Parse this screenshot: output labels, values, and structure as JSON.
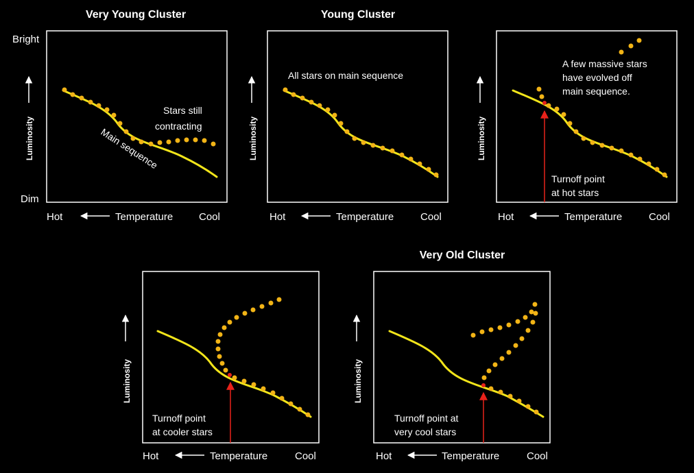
{
  "labels": {
    "bright": "Bright",
    "dim": "Dim",
    "luminosity": "Luminosity",
    "hot": "Hot",
    "cool": "Cool",
    "temperature": "Temperature"
  },
  "panels": [
    {
      "title": "Very Young Cluster",
      "annotations": [
        "Stars still",
        "contracting"
      ],
      "curve_label": "Main sequence"
    },
    {
      "title": "Young Cluster",
      "annotations": [
        "All stars on main sequence"
      ]
    },
    {
      "title": "",
      "annotations": [
        "A few massive stars",
        "have evolved off",
        "main sequence."
      ],
      "turnoff": [
        "Turnoff point",
        "at hot stars"
      ]
    },
    {
      "title": "",
      "turnoff": [
        "Turnoff point",
        "at cooler stars"
      ]
    },
    {
      "title": "Very Old Cluster",
      "turnoff": [
        "Turnoff point at",
        "very cool stars"
      ]
    }
  ],
  "colors": {
    "background": "#000000",
    "main_sequence": "#f2e51a",
    "stars": "#f2b416",
    "turnoff_arrow": "#e8221a",
    "frame": "#ffffff"
  }
}
